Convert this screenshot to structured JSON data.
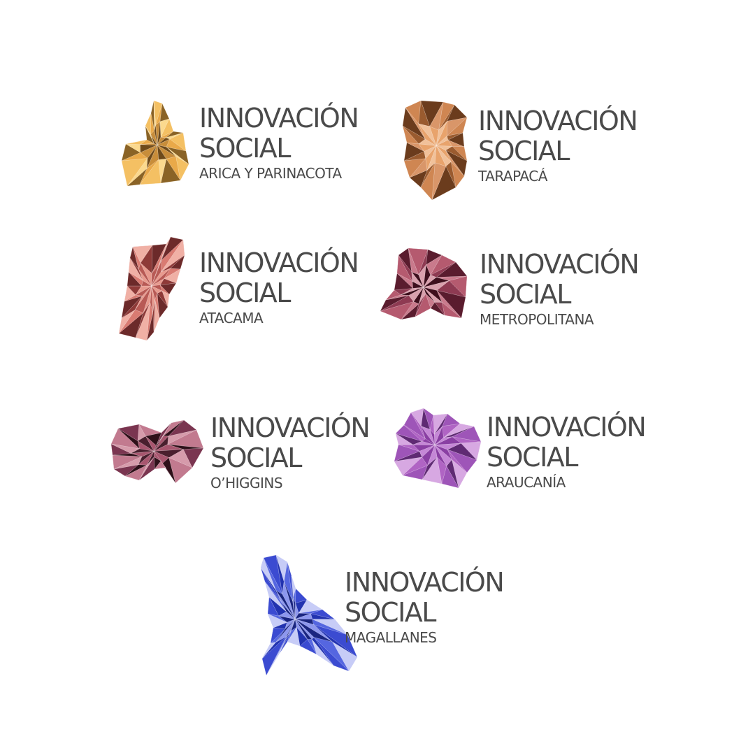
{
  "logos": [
    {
      "line1": "INNOVACIÓN",
      "line2": "SOCIAL",
      "region": "ARICA Y PARINACOTA",
      "palette": [
        "#f4c063",
        "#e9a949",
        "#c88d3a",
        "#8a6326",
        "#fbd98e",
        "#6e4a1a"
      ]
    },
    {
      "line1": "INNOVACIÓN",
      "line2": "SOCIAL",
      "region": "TARAPACÁ",
      "palette": [
        "#e8a36c",
        "#cf8652",
        "#9a5b2f",
        "#f1c19a",
        "#6b3c1d",
        "#d99669"
      ]
    },
    {
      "line1": "INNOVACIÓN",
      "line2": "SOCIAL",
      "region": "ATACAMA",
      "palette": [
        "#d97b72",
        "#b85a55",
        "#f0b0a5",
        "#8e3a38",
        "#e89a8e",
        "#6c2a2a"
      ]
    },
    {
      "line1": "INNOVACIÓN",
      "line2": "SOCIAL",
      "region": "METROPOLITANA",
      "palette": [
        "#b55a6f",
        "#8e3a52",
        "#d9a0ad",
        "#5a1c2e",
        "#c97a8c",
        "#3e0f1d"
      ]
    },
    {
      "line1": "INNOVACIÓN",
      "line2": "SOCIAL",
      "region": "O’HIGGINS",
      "palette": [
        "#a8566f",
        "#7a3550",
        "#d69bab",
        "#4a1f2e",
        "#c27a8f",
        "#2e1019"
      ]
    },
    {
      "line1": "INNOVACIÓN",
      "line2": "SOCIAL",
      "region": "ARAUCANÍA",
      "palette": [
        "#b064c4",
        "#8a3fa3",
        "#d7a8e2",
        "#5f2a73",
        "#c587d6",
        "#9e55b8"
      ]
    },
    {
      "line1": "INNOVACIÓN",
      "line2": "SOCIAL",
      "region": "MAGALLANES",
      "palette": [
        "#3b4bd1",
        "#2233b0",
        "#8d97ee",
        "#c7ccf7",
        "#5566e0",
        "#1a2580"
      ]
    }
  ]
}
